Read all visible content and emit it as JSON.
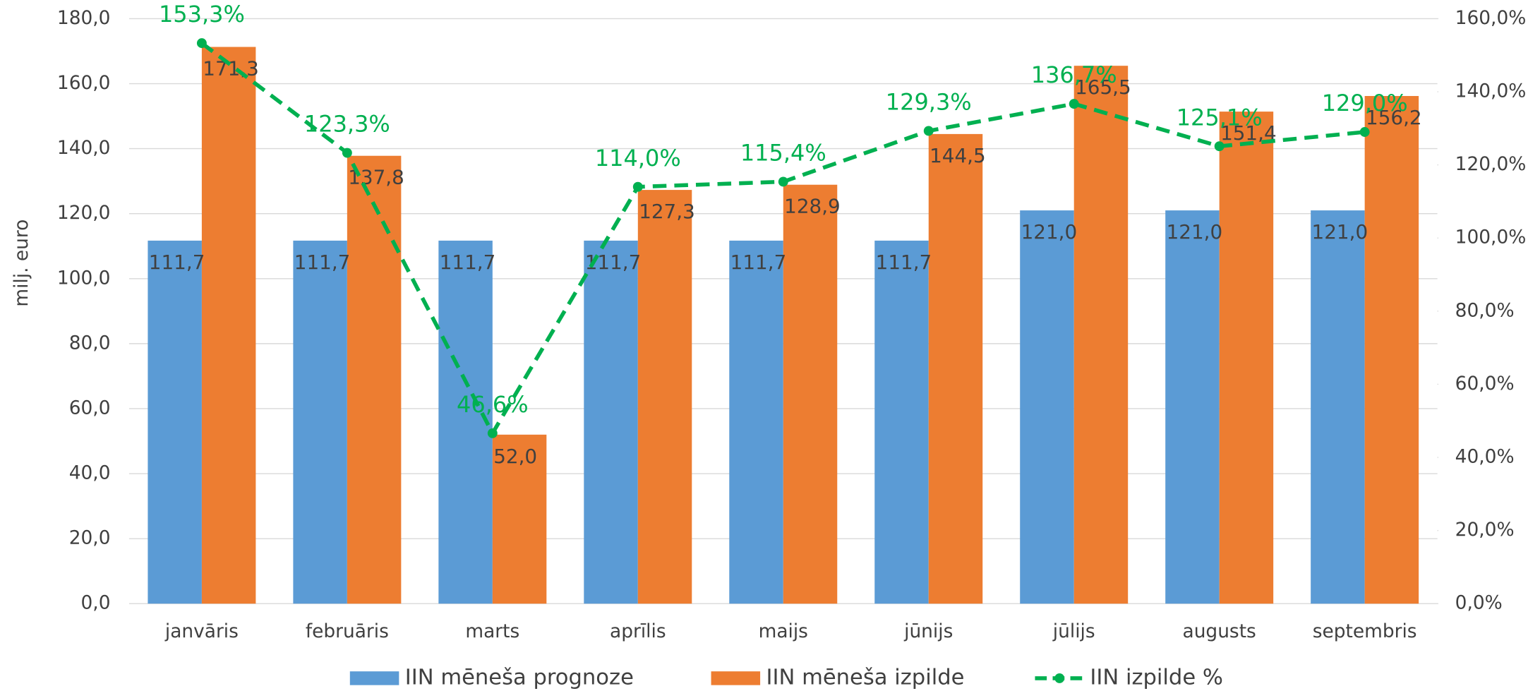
{
  "chart_data": {
    "type": "bar",
    "y_label": "milj. euro",
    "categories": [
      "janvāris",
      "februāris",
      "marts",
      "aprīlis",
      "maijs",
      "jūnijs",
      "jūlijs",
      "augusts",
      "septembris"
    ],
    "series": [
      {
        "name": "IIN mēneša prognoze",
        "color": "#5b9bd5",
        "type": "bar",
        "values": [
          111.7,
          111.7,
          111.7,
          111.7,
          111.7,
          111.7,
          121.0,
          121.0,
          121.0
        ],
        "value_labels": [
          "111,7",
          "111,7",
          "111,7",
          "111,7",
          "111,7",
          "111,7",
          "121,0",
          "121,0",
          "121,0"
        ]
      },
      {
        "name": "IIN mēneša izpilde",
        "color": "#ed7d31",
        "type": "bar",
        "values": [
          171.3,
          137.8,
          52.0,
          127.3,
          128.9,
          144.5,
          165.5,
          151.4,
          156.2
        ],
        "value_labels": [
          "171,3",
          "137,8",
          "52,0",
          "127,3",
          "128,9",
          "144,5",
          "165,5",
          "151,4",
          "156,2"
        ]
      },
      {
        "name": "IIN izpilde %",
        "color": "#00b050",
        "type": "line",
        "axis": "y2",
        "dashed": true,
        "values": [
          153.3,
          123.3,
          46.6,
          114.0,
          115.4,
          129.3,
          136.7,
          125.1,
          129.0
        ],
        "value_labels": [
          "153,3%",
          "123,3%",
          "46,6%",
          "114,0%",
          "115,4%",
          "129,3%",
          "136,7%",
          "125,1%",
          "129,0%"
        ]
      }
    ],
    "ylim": [
      0,
      180
    ],
    "yticks": [
      {
        "value": 0,
        "label": "0,0"
      },
      {
        "value": 20,
        "label": "20,0"
      },
      {
        "value": 40,
        "label": "40,0"
      },
      {
        "value": 60,
        "label": "60,0"
      },
      {
        "value": 80,
        "label": "80,0"
      },
      {
        "value": 100,
        "label": "100,0"
      },
      {
        "value": 120,
        "label": "120,0"
      },
      {
        "value": 140,
        "label": "140,0"
      },
      {
        "value": 160,
        "label": "160,0"
      },
      {
        "value": 180,
        "label": "180,0"
      }
    ],
    "y2lim": [
      0,
      160
    ],
    "y2ticks": [
      {
        "value": 0,
        "label": "0,0%"
      },
      {
        "value": 20,
        "label": "20,0%"
      },
      {
        "value": 40,
        "label": "40,0%"
      },
      {
        "value": 60,
        "label": "60,0%"
      },
      {
        "value": 80,
        "label": "80,0%"
      },
      {
        "value": 100,
        "label": "100,0%"
      },
      {
        "value": 120,
        "label": "120,0%"
      },
      {
        "value": 140,
        "label": "140,0%"
      },
      {
        "value": 160,
        "label": "160,0%"
      }
    ],
    "grid": true,
    "legend": "bottom"
  }
}
